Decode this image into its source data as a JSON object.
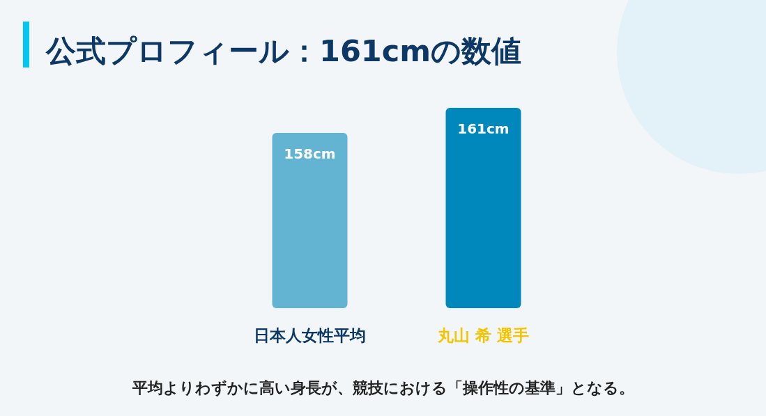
{
  "chart_data": {
    "type": "bar",
    "title": "公式プロフィール：161cmの数値",
    "categories": [
      "日本人女性平均",
      "丸山 希 選手"
    ],
    "values": [
      158,
      161
    ],
    "value_labels": [
      "158cm",
      "161cm"
    ],
    "colors": [
      "#63b3d3",
      "#0088bd"
    ],
    "ylim": [
      137,
      161
    ],
    "annotations": [
      "平均よりわずかに高い身長が、競技における「操作性の基準」となる。"
    ]
  }
}
